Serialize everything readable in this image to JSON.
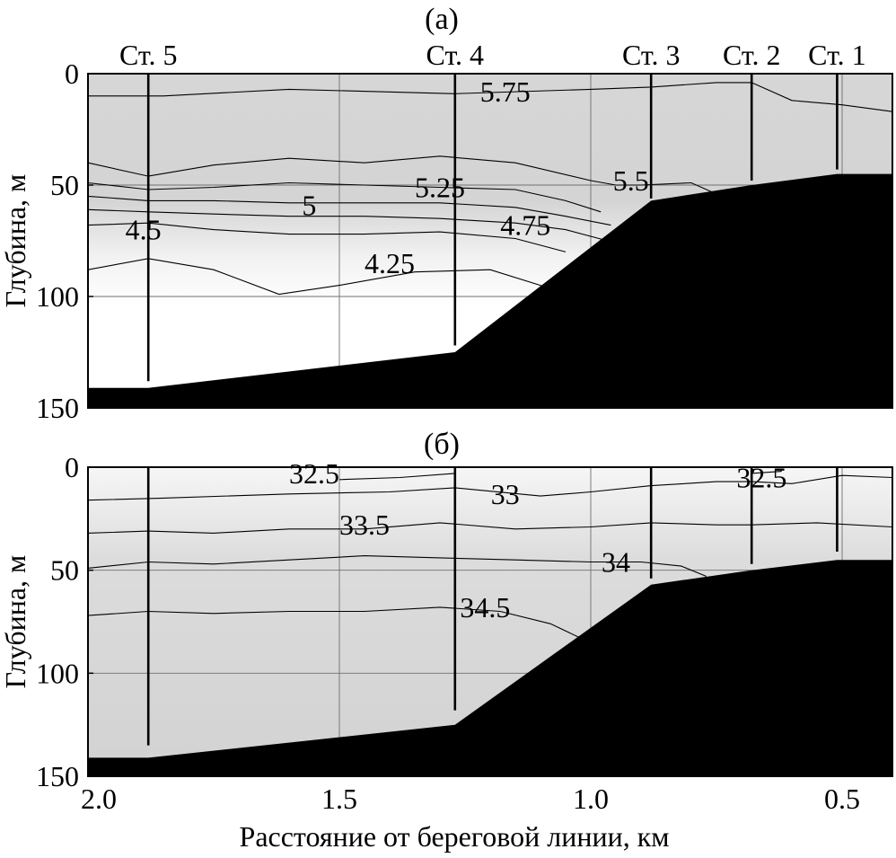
{
  "chart_data": [
    {
      "type": "contour",
      "panel_label": "(а)",
      "ylabel": "Глубина, м",
      "xlim": [
        2.0,
        0.4
      ],
      "ylim": [
        150,
        0
      ],
      "xticks": [
        2.0,
        1.5,
        1.0,
        0.5
      ],
      "xtick_labels": [
        "2.0",
        "1.5",
        "1.0",
        "0.5"
      ],
      "yticks": [
        0,
        50,
        100,
        150
      ],
      "ytick_labels": [
        "0",
        "50",
        "100",
        "150"
      ],
      "grid": true,
      "fill_top_color": "#d4d4d4",
      "fill_bottom_color": "#ffffff",
      "bottom_color": "#000000",
      "stations": [
        {
          "label": "Ст. 5",
          "x": 1.88,
          "depth": 138
        },
        {
          "label": "Ст. 4",
          "x": 1.27,
          "depth": 122
        },
        {
          "label": "Ст. 3",
          "x": 0.88,
          "depth": 56
        },
        {
          "label": "Ст. 2",
          "x": 0.68,
          "depth": 48
        },
        {
          "label": "Ст. 1",
          "x": 0.51,
          "depth": 43
        }
      ],
      "bottom_profile": [
        [
          2.0,
          141
        ],
        [
          1.88,
          141
        ],
        [
          1.27,
          125
        ],
        [
          0.88,
          57
        ],
        [
          0.68,
          50
        ],
        [
          0.51,
          45
        ],
        [
          0.4,
          45
        ]
      ],
      "contours": [
        {
          "value": "5.75",
          "label_x": 1.17,
          "label_y": 8,
          "points": [
            [
              2.0,
              10
            ],
            [
              1.85,
              10
            ],
            [
              1.6,
              7
            ],
            [
              1.27,
              9
            ],
            [
              1.0,
              7
            ],
            [
              0.88,
              6
            ],
            [
              0.75,
              4
            ],
            [
              0.68,
              4
            ],
            [
              0.6,
              12
            ],
            [
              0.5,
              14
            ],
            [
              0.4,
              17
            ]
          ]
        },
        {
          "value": "5.5",
          "label_x": 0.92,
          "label_y": 48,
          "points": [
            [
              2.0,
              40
            ],
            [
              1.88,
              46
            ],
            [
              1.75,
              41
            ],
            [
              1.6,
              38
            ],
            [
              1.45,
              40
            ],
            [
              1.3,
              37
            ],
            [
              1.15,
              40
            ],
            [
              1.0,
              48
            ],
            [
              0.95,
              50
            ],
            [
              0.9,
              50
            ],
            [
              0.8,
              49
            ],
            [
              0.75,
              54
            ]
          ]
        },
        {
          "value": "5.25",
          "label_x": 1.3,
          "label_y": 51,
          "points": [
            [
              2.0,
              49
            ],
            [
              1.88,
              52
            ],
            [
              1.75,
              51
            ],
            [
              1.6,
              49
            ],
            [
              1.45,
              50
            ],
            [
              1.3,
              51
            ],
            [
              1.15,
              52
            ],
            [
              1.05,
              57
            ],
            [
              0.98,
              62
            ]
          ]
        },
        {
          "value": "5",
          "label_x": 1.56,
          "label_y": 59,
          "points": [
            [
              2.0,
              55
            ],
            [
              1.88,
              57
            ],
            [
              1.75,
              57
            ],
            [
              1.6,
              58
            ],
            [
              1.45,
              58
            ],
            [
              1.3,
              58
            ],
            [
              1.15,
              60
            ],
            [
              1.05,
              64
            ],
            [
              0.96,
              68
            ]
          ]
        },
        {
          "value": "4.75",
          "label_x": 1.13,
          "label_y": 68,
          "points": [
            [
              2.0,
              61
            ],
            [
              1.88,
              62
            ],
            [
              1.75,
              63
            ],
            [
              1.6,
              64
            ],
            [
              1.45,
              64
            ],
            [
              1.3,
              65
            ],
            [
              1.15,
              67
            ],
            [
              1.05,
              70
            ],
            [
              0.95,
              76
            ]
          ]
        },
        {
          "value": "4.5",
          "label_x": 1.89,
          "label_y": 70,
          "points": [
            [
              2.0,
              68
            ],
            [
              1.88,
              67
            ],
            [
              1.75,
              70
            ],
            [
              1.6,
              72
            ],
            [
              1.45,
              72
            ],
            [
              1.3,
              71
            ],
            [
              1.15,
              74
            ],
            [
              1.05,
              80
            ]
          ]
        },
        {
          "value": "4.25",
          "label_x": 1.4,
          "label_y": 85,
          "points": [
            [
              2.0,
              88
            ],
            [
              1.88,
              83
            ],
            [
              1.75,
              88
            ],
            [
              1.62,
              99
            ],
            [
              1.5,
              95
            ],
            [
              1.35,
              89
            ],
            [
              1.2,
              88
            ],
            [
              1.1,
              95
            ],
            [
              1.05,
              100
            ]
          ]
        }
      ]
    },
    {
      "type": "contour",
      "panel_label": "(б)",
      "ylabel": "Глубина, м",
      "xlabel": "Расстояние от береговой линии, км",
      "xlim": [
        2.0,
        0.4
      ],
      "ylim": [
        150,
        0
      ],
      "xticks": [
        2.0,
        1.5,
        1.0,
        0.5
      ],
      "xtick_labels": [
        "2.0",
        "1.5",
        "1.0",
        "0.5"
      ],
      "yticks": [
        0,
        50,
        100,
        150
      ],
      "ytick_labels": [
        "0",
        "50",
        "100",
        "150"
      ],
      "grid": true,
      "fill_top_color": "#f4f4f4",
      "fill_bottom_color": "#d2d2d2",
      "bottom_color": "#000000",
      "stations": [
        {
          "label": "Ст. 5",
          "x": 1.88,
          "depth": 135
        },
        {
          "label": "Ст. 4",
          "x": 1.27,
          "depth": 118
        },
        {
          "label": "Ст. 3",
          "x": 0.88,
          "depth": 54
        },
        {
          "label": "Ст. 2",
          "x": 0.68,
          "depth": 47
        },
        {
          "label": "Ст. 1",
          "x": 0.51,
          "depth": 41
        }
      ],
      "bottom_profile": [
        [
          2.0,
          141
        ],
        [
          1.88,
          141
        ],
        [
          1.27,
          125
        ],
        [
          0.88,
          57
        ],
        [
          0.68,
          50
        ],
        [
          0.51,
          45
        ],
        [
          0.4,
          45
        ]
      ],
      "contours": [
        {
          "value": "32.5",
          "label_x": 1.55,
          "label_y": 3,
          "points": [
            [
              1.5,
              6
            ],
            [
              1.38,
              5
            ],
            [
              1.27,
              3
            ]
          ]
        },
        {
          "value": "33",
          "label_x": 1.17,
          "label_y": 13,
          "points": [
            [
              2.0,
              16
            ],
            [
              1.85,
              15
            ],
            [
              1.6,
              13
            ],
            [
              1.4,
              12
            ],
            [
              1.27,
              10
            ],
            [
              1.1,
              14
            ],
            [
              1.0,
              12
            ],
            [
              0.88,
              9
            ],
            [
              0.75,
              7
            ],
            [
              0.68,
              7
            ],
            [
              0.6,
              8
            ],
            [
              0.5,
              4
            ],
            [
              0.4,
              5
            ]
          ]
        },
        {
          "value": "32.5",
          "label_x": 0.66,
          "label_y": 5,
          "points": [
            [
              0.68,
              3
            ],
            [
              0.62,
              2
            ]
          ]
        },
        {
          "value": "33.5",
          "label_x": 1.45,
          "label_y": 28,
          "points": [
            [
              2.0,
              32
            ],
            [
              1.88,
              31
            ],
            [
              1.75,
              32
            ],
            [
              1.6,
              30
            ],
            [
              1.45,
              30
            ],
            [
              1.3,
              27
            ],
            [
              1.15,
              30
            ],
            [
              1.0,
              29
            ],
            [
              0.88,
              27
            ],
            [
              0.75,
              28
            ],
            [
              0.68,
              28
            ],
            [
              0.55,
              27
            ],
            [
              0.4,
              29
            ]
          ]
        },
        {
          "value": "34",
          "label_x": 0.95,
          "label_y": 46,
          "points": [
            [
              2.0,
              49
            ],
            [
              1.88,
              46
            ],
            [
              1.75,
              47
            ],
            [
              1.6,
              45
            ],
            [
              1.45,
              43
            ],
            [
              1.3,
              44
            ],
            [
              1.15,
              45
            ],
            [
              1.0,
              46
            ],
            [
              0.9,
              46
            ],
            [
              0.82,
              48
            ],
            [
              0.77,
              53
            ]
          ]
        },
        {
          "value": "34.5",
          "label_x": 1.21,
          "label_y": 68,
          "points": [
            [
              2.0,
              72
            ],
            [
              1.88,
              70
            ],
            [
              1.75,
              71
            ],
            [
              1.6,
              70
            ],
            [
              1.45,
              70
            ],
            [
              1.3,
              68
            ],
            [
              1.18,
              70
            ],
            [
              1.08,
              76
            ],
            [
              1.02,
              83
            ]
          ]
        }
      ]
    }
  ]
}
